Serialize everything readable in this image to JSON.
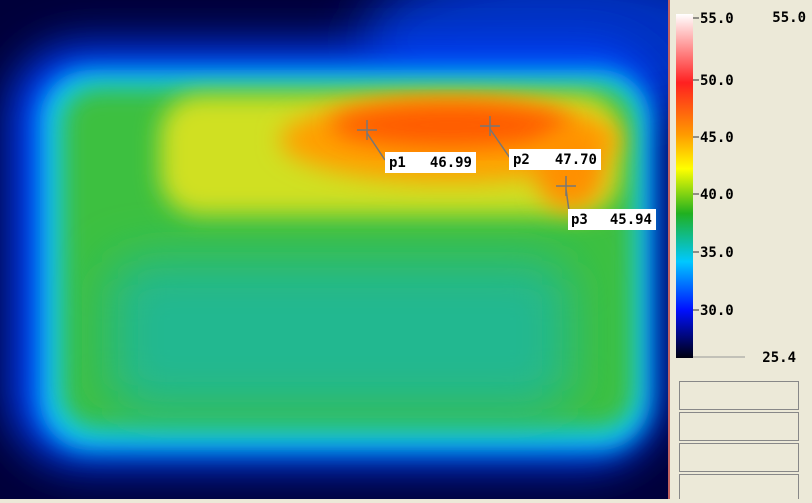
{
  "scale": {
    "max_label": "55.0",
    "ticks": [
      "55.0",
      "50.0",
      "45.0",
      "40.0",
      "35.0",
      "30.0"
    ],
    "min_label": "25.4"
  },
  "points": [
    {
      "name": "p1",
      "value": "46.99"
    },
    {
      "name": "p2",
      "value": "47.70"
    },
    {
      "name": "p3",
      "value": "45.94"
    }
  ]
}
